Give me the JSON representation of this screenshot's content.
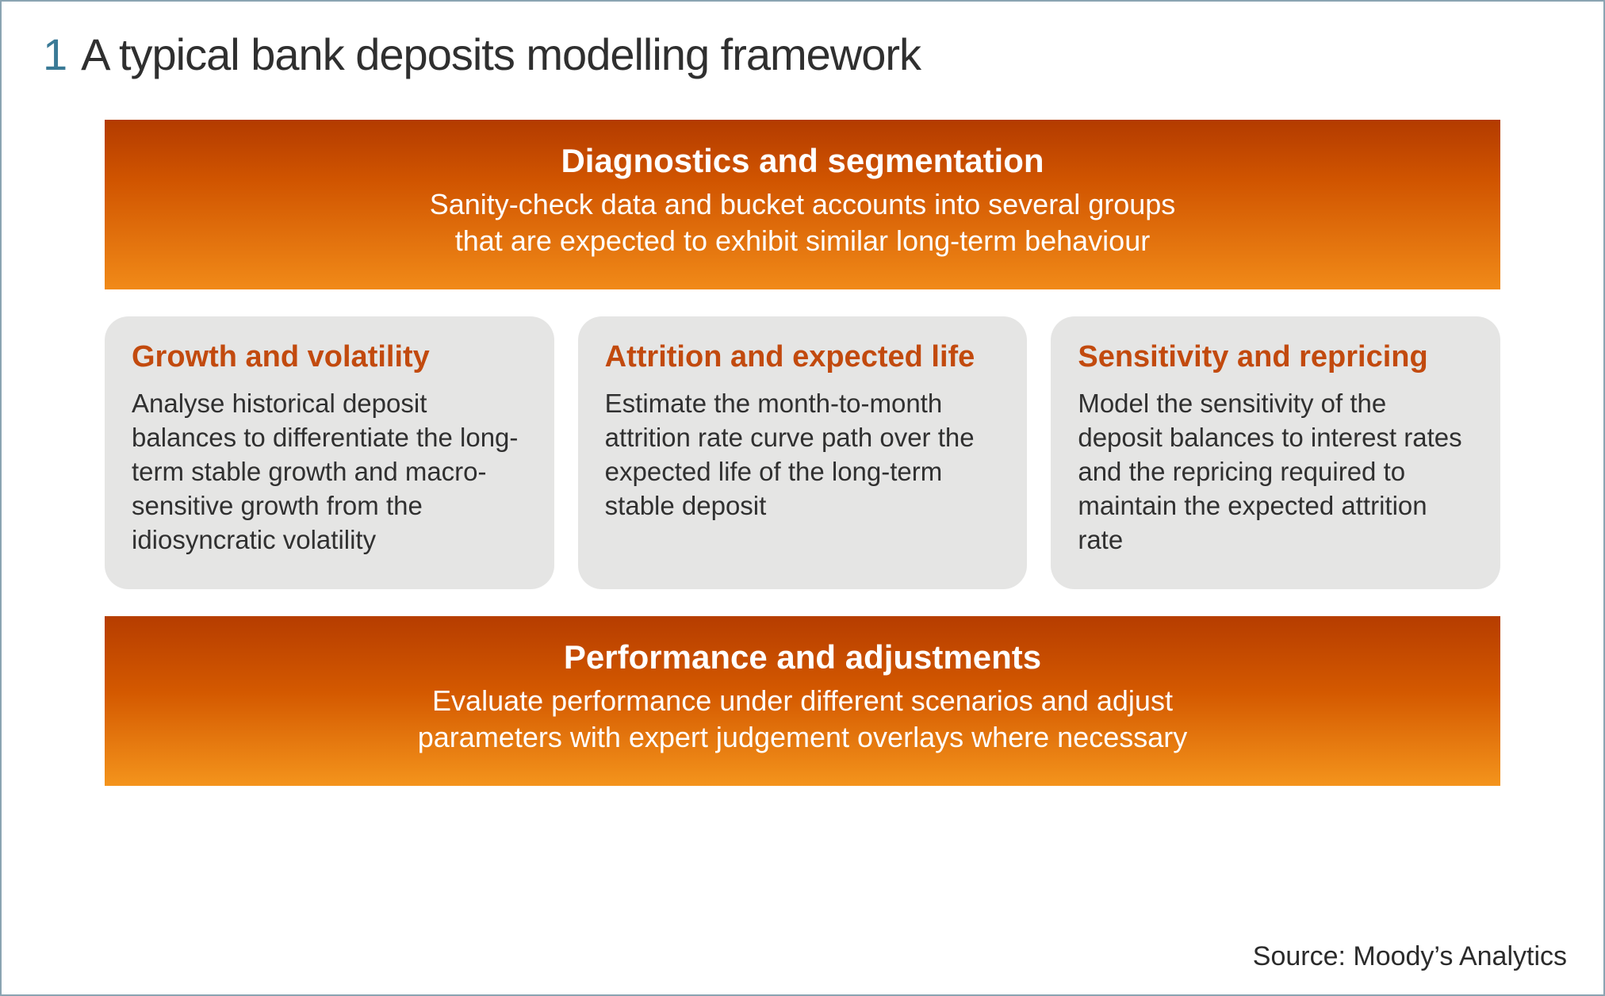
{
  "figure": {
    "number": "1",
    "title": "A typical bank deposits modelling framework",
    "border_color": "#8aa4b2",
    "title_number_color": "#3a7a96",
    "title_text_color": "#2f2f2f",
    "title_fontsize": 56
  },
  "top_box": {
    "title": "Diagnostics and segmentation",
    "body_line1": "Sanity-check data and bucket accounts into several groups",
    "body_line2": "that are expected to exhibit similar long-term behaviour",
    "gradient_top": "#b33b00",
    "gradient_bottom": "#f18a18",
    "text_color": "#ffffff",
    "title_fontsize": 42,
    "body_fontsize": 36
  },
  "cards": [
    {
      "title": "Growth and volatility",
      "body": "Analyse historical deposit balances to differentiate the long-term stable growth and macro-sensitive growth from the idiosyncratic volatility"
    },
    {
      "title": "Attrition and expected life",
      "body": "Estimate the month-to-month attrition rate curve path over the expected life of the long-term stable deposit"
    },
    {
      "title": "Sensitivity and repricing",
      "body": "Model the sensitivity of the deposit balances to interest rates and the repricing required to maintain the expected attrition rate"
    }
  ],
  "card_style": {
    "background": "#e5e5e4",
    "title_color": "#c24a0e",
    "body_color": "#303030",
    "border_radius": 30,
    "title_fontsize": 38,
    "body_fontsize": 33
  },
  "bottom_box": {
    "title": "Performance and adjustments",
    "body_line1": "Evaluate performance under different scenarios and adjust",
    "body_line2": "parameters with expert judgement overlays where necessary",
    "gradient_top": "#b63d00",
    "gradient_bottom": "#f4941c",
    "text_color": "#ffffff"
  },
  "source": {
    "label": "Source: Moody’s Analytics",
    "fontsize": 34,
    "color": "#2b2b2b"
  }
}
